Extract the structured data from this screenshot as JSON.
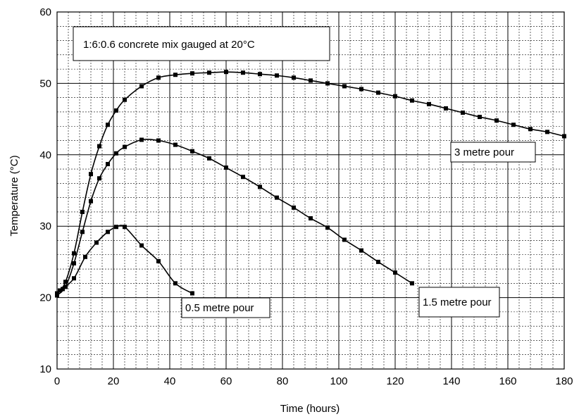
{
  "chart_data": {
    "type": "line",
    "title": "",
    "xlabel": "Time (hours)",
    "ylabel": "Temperature (°C)",
    "xlim": [
      0,
      180
    ],
    "ylim": [
      10,
      60
    ],
    "xticks": [
      0,
      20,
      40,
      60,
      80,
      100,
      120,
      140,
      160,
      180
    ],
    "yticks": [
      10,
      20,
      30,
      40,
      50,
      60
    ],
    "grid": true,
    "grid_minor_x_step": 4,
    "grid_minor_y_step": 2,
    "line_color": "#000000",
    "marker": "square",
    "annotations": [
      {
        "text": "1:6:0.6 concrete mix gauged at 20°C"
      }
    ],
    "series": [
      {
        "name": "3 metre pour",
        "x": [
          0,
          1,
          3,
          6,
          9,
          12,
          15,
          18,
          21,
          24,
          30,
          36,
          42,
          48,
          54,
          60,
          66,
          72,
          78,
          84,
          90,
          96,
          102,
          108,
          114,
          120,
          126,
          132,
          138,
          144,
          150,
          156,
          162,
          168,
          174,
          180
        ],
        "y": [
          20.5,
          21.0,
          22.2,
          26.2,
          32.0,
          37.3,
          41.2,
          44.2,
          46.2,
          47.7,
          49.6,
          50.8,
          51.2,
          51.4,
          51.5,
          51.6,
          51.5,
          51.3,
          51.1,
          50.8,
          50.4,
          50.0,
          49.6,
          49.2,
          48.7,
          48.2,
          47.6,
          47.1,
          46.5,
          45.9,
          45.3,
          44.8,
          44.2,
          43.6,
          43.2,
          42.6
        ]
      },
      {
        "name": "1.5 metre pour",
        "x": [
          0,
          3,
          6,
          9,
          12,
          15,
          18,
          21,
          24,
          30,
          36,
          42,
          48,
          54,
          60,
          66,
          72,
          78,
          84,
          90,
          96,
          102,
          108,
          114,
          120,
          126
        ],
        "y": [
          20.3,
          21.5,
          24.8,
          29.2,
          33.5,
          36.7,
          38.7,
          40.2,
          41.1,
          42.1,
          42.0,
          41.4,
          40.5,
          39.5,
          38.2,
          36.9,
          35.5,
          34.0,
          32.6,
          31.1,
          29.8,
          28.1,
          26.6,
          25.0,
          23.5,
          22.0
        ]
      },
      {
        "name": "0.5 metre pour",
        "x": [
          0,
          2,
          6,
          10,
          14,
          18,
          21,
          24,
          30,
          36,
          42,
          48
        ],
        "y": [
          20.6,
          21.2,
          22.7,
          25.7,
          27.7,
          29.2,
          29.9,
          29.9,
          27.3,
          25.1,
          22.0,
          20.6
        ]
      }
    ]
  }
}
